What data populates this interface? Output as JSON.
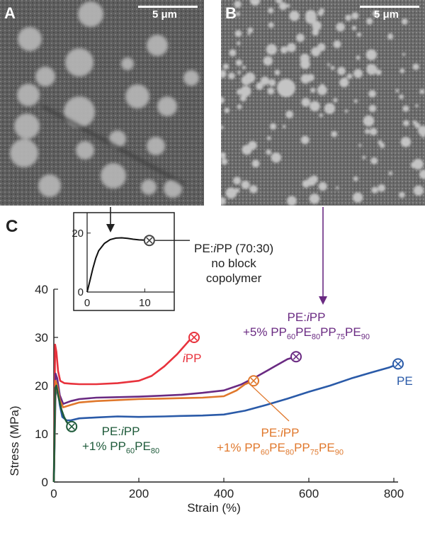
{
  "micrographs": {
    "a": {
      "letter": "A",
      "scale": "5 μm"
    },
    "b": {
      "letter": "B",
      "scale": "5 μm"
    }
  },
  "panel_c_letter": "C",
  "chart_data": [
    {
      "type": "line",
      "name": "main",
      "xlabel": "Strain (%)",
      "ylabel": "Stress (MPa)",
      "xlim": [
        0,
        820
      ],
      "ylim": [
        0,
        40
      ],
      "xticks": [
        0,
        200,
        400,
        600,
        800
      ],
      "yticks": [
        0,
        10,
        20,
        30,
        40
      ],
      "grid": false,
      "series": [
        {
          "key": "pe",
          "color": "#2a5aa8",
          "x": [
            0,
            4,
            8,
            14,
            20,
            30,
            40,
            60,
            100,
            150,
            200,
            260,
            300,
            350,
            400,
            450,
            500,
            550,
            600,
            650,
            700,
            750,
            790,
            810
          ],
          "y": [
            0,
            18,
            20,
            16,
            13.5,
            12.8,
            12.8,
            13.2,
            13.4,
            13.6,
            13.5,
            13.6,
            13.7,
            13.8,
            14,
            14.8,
            16,
            17.3,
            18.7,
            20,
            21.5,
            22.8,
            23.8,
            24.5
          ]
        },
        {
          "key": "ipp",
          "color": "#e8323c",
          "x": [
            0,
            3,
            6,
            10,
            15,
            25,
            40,
            60,
            100,
            150,
            200,
            230,
            260,
            290,
            310,
            320,
            330
          ],
          "y": [
            0,
            28.5,
            27,
            23,
            21,
            20.5,
            20.4,
            20.3,
            20.3,
            20.5,
            21,
            22,
            24,
            26.5,
            28.5,
            29.5,
            30
          ]
        },
        {
          "key": "pp_block",
          "color": "#6a2a82",
          "x": [
            0,
            4,
            8,
            14,
            22,
            40,
            60,
            100,
            150,
            200,
            250,
            300,
            350,
            400,
            440,
            480,
            520,
            550,
            570
          ],
          "y": [
            0,
            22.5,
            21.5,
            18,
            16.2,
            16.8,
            17.2,
            17.5,
            17.6,
            17.7,
            17.9,
            18.1,
            18.5,
            19,
            20.2,
            22,
            24,
            25.5,
            26
          ]
        },
        {
          "key": "pppe_pppe",
          "color": "#e0782c",
          "x": [
            0,
            4,
            8,
            14,
            22,
            40,
            60,
            100,
            150,
            200,
            250,
            300,
            350,
            400,
            430,
            450,
            470
          ],
          "y": [
            0,
            21,
            20,
            17,
            15.5,
            16,
            16.5,
            16.8,
            17,
            17.2,
            17.3,
            17.4,
            17.5,
            17.8,
            19,
            20.3,
            21
          ]
        },
        {
          "key": "pp_pe",
          "color": "#1e5a3a",
          "x": [
            0,
            3,
            6,
            10,
            14,
            18,
            24,
            30,
            36,
            42
          ],
          "y": [
            0,
            19.5,
            20,
            18,
            16.5,
            15,
            13.5,
            12.5,
            11.8,
            11.5
          ]
        }
      ],
      "end_markers": [
        {
          "series": "pe",
          "x": 810,
          "y": 24.5
        },
        {
          "series": "ipp",
          "x": 330,
          "y": 30
        },
        {
          "series": "pp_block",
          "x": 570,
          "y": 26
        },
        {
          "series": "pppe_pppe",
          "x": 470,
          "y": 21
        },
        {
          "series": "pp_pe",
          "x": 42,
          "y": 11.5
        }
      ],
      "labels": {
        "ipp": {
          "italic": "i",
          "text": "PP"
        },
        "pe": {
          "text": "PE"
        },
        "pp_block": {
          "line1_a": "PE:",
          "line1_i": "i",
          "line1_b": "PP",
          "line2_a": "+5% PP",
          "line2_s1": "60",
          "line2_b": "PE",
          "line2_s2": "80",
          "line2_c": "PP",
          "line2_s3": "75",
          "line2_d": "PE",
          "line2_s4": "90"
        },
        "pppe_pppe": {
          "line1_a": "PE:",
          "line1_i": "i",
          "line1_b": "PP",
          "line2_a": "+1% PP",
          "line2_s1": "60",
          "line2_b": "PE",
          "line2_s2": "80",
          "line2_c": "PP",
          "line2_s3": "75",
          "line2_d": "PE",
          "line2_s4": "90"
        },
        "pp_pe": {
          "line1_a": "PE:",
          "line1_i": "i",
          "line1_b": "PP",
          "line2_a": "+1% PP",
          "line2_s1": "60",
          "line2_b": "PE",
          "line2_s2": "80"
        }
      }
    },
    {
      "type": "line",
      "name": "inset",
      "xlim": [
        0,
        15
      ],
      "ylim": [
        0,
        25
      ],
      "xticks": [
        0,
        10
      ],
      "yticks": [
        0,
        20
      ],
      "series": [
        {
          "key": "blend_70_30",
          "color": "#111111",
          "x": [
            0,
            0.5,
            1,
            1.5,
            2,
            3,
            4,
            5,
            6,
            7,
            8,
            9,
            10,
            10.8
          ],
          "y": [
            0,
            4,
            8,
            11.5,
            14,
            16.5,
            17.8,
            18.3,
            18.4,
            18.2,
            17.9,
            17.7,
            17.6,
            17.5
          ]
        }
      ],
      "end_marker": {
        "x": 10.8,
        "y": 17.5
      },
      "label": {
        "line1_a": "PE:",
        "line1_i": "i",
        "line1_b": "PP (70:30)",
        "line2": "no block",
        "line3": "copolymer"
      }
    }
  ]
}
